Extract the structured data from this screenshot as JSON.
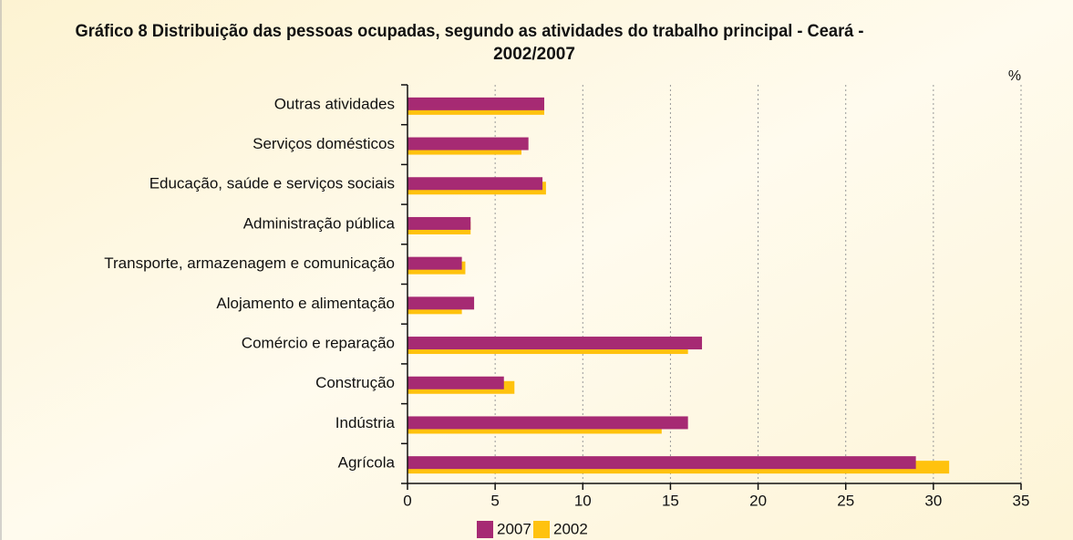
{
  "chart_data": {
    "type": "hbar",
    "title": [
      "Gráfico 8  Distribuição das pessoas ocupadas, segundo as atividades do trabalho principal - Ceará -",
      "2002/2007"
    ],
    "unit": "%",
    "categories": [
      "Outras atividades",
      "Serviços domésticos",
      "Educação, saúde e serviços sociais",
      "Administração pública",
      "Transporte, armazenagem e comunicação",
      "Alojamento e alimentação",
      "Comércio e reparação",
      "Construção",
      "Indústria",
      "Agrícola"
    ],
    "series": [
      {
        "name": "2007",
        "color": "#a62a73",
        "values": [
          7.8,
          6.9,
          7.7,
          3.6,
          3.1,
          3.8,
          16.8,
          5.5,
          16.0,
          29.0
        ]
      },
      {
        "name": "2002",
        "color": "#ffc20e",
        "values": [
          7.8,
          6.5,
          7.9,
          3.6,
          3.3,
          3.1,
          16.0,
          6.1,
          14.5,
          30.9
        ]
      }
    ],
    "xlim": [
      0,
      35
    ],
    "xticks": [
      0,
      5,
      10,
      15,
      20,
      25,
      30,
      35
    ],
    "grid": true
  }
}
